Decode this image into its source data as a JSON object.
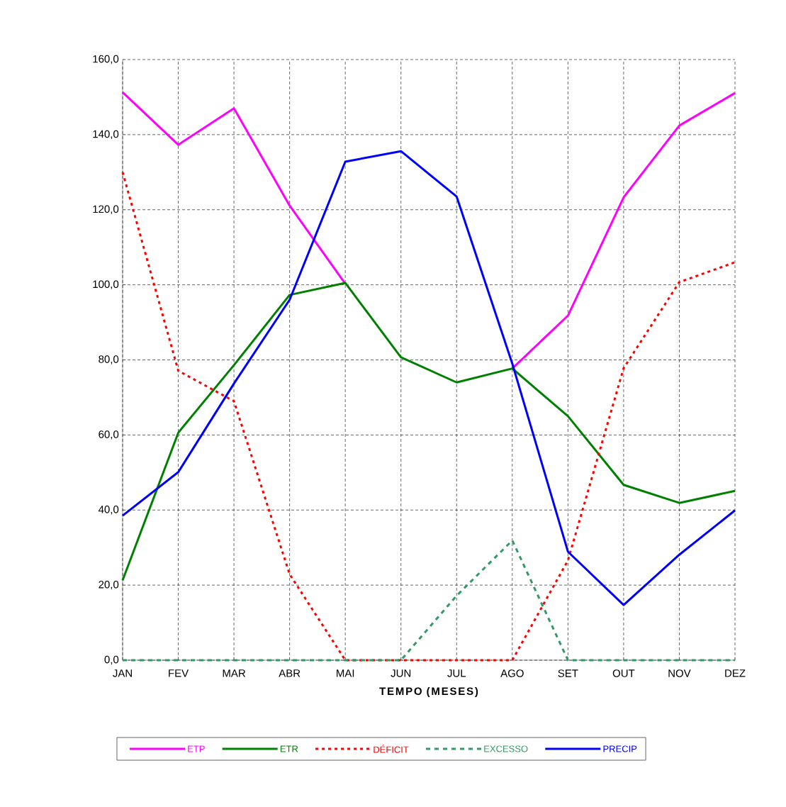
{
  "chart_data": {
    "type": "line",
    "xlabel": "TEMPO (MESES)",
    "categories": [
      "JAN",
      "FEV",
      "MAR",
      "ABR",
      "MAI",
      "JUN",
      "JUL",
      "AGO",
      "SET",
      "OUT",
      "NOV",
      "DEZ"
    ],
    "series": [
      {
        "name": "ETP",
        "color": "#ff00ff",
        "line_style": "solid",
        "values": [
          151.3,
          137.3,
          147.0,
          121.1,
          100.3,
          null,
          null,
          77.7,
          91.8,
          123.3,
          142.4,
          151.1
        ]
      },
      {
        "name": "ETR",
        "color": "#008000",
        "line_style": "solid",
        "values": [
          21.3,
          60.6,
          78.6,
          97.3,
          100.5,
          80.7,
          74.0,
          77.7,
          65.0,
          46.7,
          41.9,
          45.1
        ]
      },
      {
        "name": "DÉFICIT",
        "color": "#ff0000",
        "line_style": "dotted",
        "values": [
          130.0,
          77.1,
          69.0,
          22.9,
          0,
          0,
          0,
          0,
          26.6,
          77.8,
          100.7,
          106.0
        ]
      },
      {
        "name": "EXCESSO",
        "color": "#339966",
        "line_style": "dashed",
        "values": [
          0,
          0,
          0,
          0,
          0,
          0,
          17.2,
          31.9,
          0,
          0,
          0,
          0
        ]
      },
      {
        "name": "PRECIP",
        "color": "#0000ff",
        "line_style": "solid",
        "values": [
          38.5,
          50.1,
          73.7,
          96.0,
          132.8,
          135.6,
          123.5,
          79.0,
          28.9,
          14.7,
          28.1,
          39.9
        ]
      }
    ],
    "ylim": [
      0,
      160
    ],
    "yticks": [
      {
        "value": 0,
        "label": "0,0"
      },
      {
        "value": 20,
        "label": "20,0"
      },
      {
        "value": 40,
        "label": "40,0"
      },
      {
        "value": 60,
        "label": "60,0"
      },
      {
        "value": 80,
        "label": "80,0"
      },
      {
        "value": 100,
        "label": "100,0"
      },
      {
        "value": 120,
        "label": "120,0"
      },
      {
        "value": 140,
        "label": "140,0"
      },
      {
        "value": 160,
        "label": "160,0"
      }
    ],
    "grid": true,
    "legend": "bottom",
    "marker": "none"
  }
}
